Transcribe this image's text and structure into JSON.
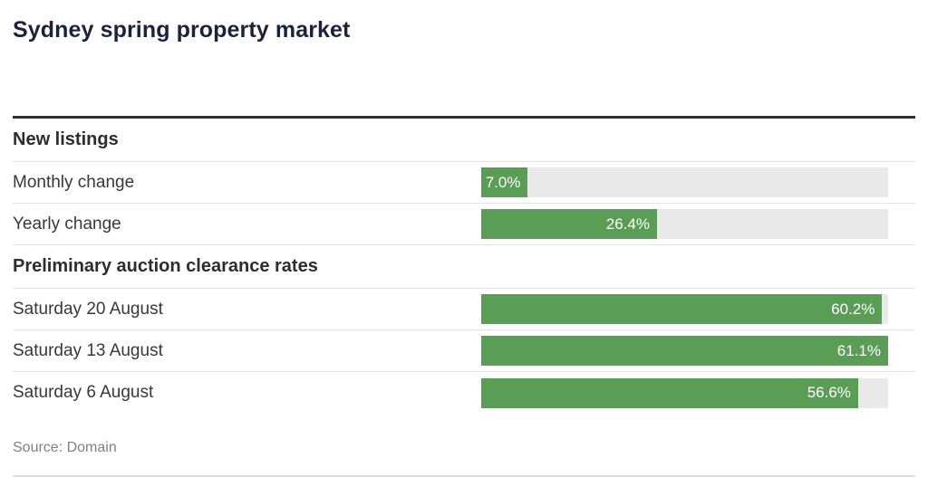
{
  "title": "Sydney spring property market",
  "source": "Source: Domain",
  "colors": {
    "bar_fill": "#5a9e55",
    "bar_track": "#e9e9e9",
    "title_navy": "#1b2240",
    "heading": "#2d2d2d",
    "label": "#383838",
    "source_gray": "#808080",
    "rule_dark": "#2e2e2e",
    "divider": "#e4e4e4",
    "rule_light": "#dddddd"
  },
  "chart_data": {
    "type": "bar",
    "orientation": "horizontal",
    "title": "Sydney spring property market",
    "value_suffix": "%",
    "scale_max": 61.1,
    "grid": false,
    "legend": false,
    "sections": [
      {
        "heading": "New listings",
        "rows": [
          {
            "label": "Monthly change",
            "value": 7.0,
            "display": "7.0%"
          },
          {
            "label": "Yearly change",
            "value": 26.4,
            "display": "26.4%"
          }
        ]
      },
      {
        "heading": "Preliminary auction clearance rates",
        "rows": [
          {
            "label": "Saturday 20 August",
            "value": 60.2,
            "display": "60.2%"
          },
          {
            "label": "Saturday 13 August",
            "value": 61.1,
            "display": "61.1%"
          },
          {
            "label": "Saturday 6 August",
            "value": 56.6,
            "display": "56.6%"
          }
        ]
      }
    ],
    "source": "Source: Domain"
  }
}
